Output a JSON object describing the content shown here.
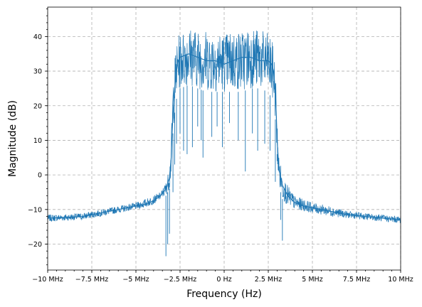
{
  "chart_data": {
    "type": "line",
    "title": "",
    "xlabel": "Frequency (Hz)",
    "ylabel": "Magnitude (dB)",
    "xlim": [
      -10,
      10
    ],
    "ylim": [
      -27.5,
      48.5
    ],
    "x_unit": "MHz",
    "grid": true,
    "legend": "none",
    "color": "#1f77b4",
    "xticks": [
      {
        "value": -10,
        "label": "−10 MHz"
      },
      {
        "value": -7.5,
        "label": "−7.5 MHz"
      },
      {
        "value": -5,
        "label": "−5 MHz"
      },
      {
        "value": -2.5,
        "label": "−2.5 MHz"
      },
      {
        "value": 0,
        "label": "0 Hz"
      },
      {
        "value": 2.5,
        "label": "2.5 MHz"
      },
      {
        "value": 5,
        "label": "5 MHz"
      },
      {
        "value": 7.5,
        "label": "7.5 MHz"
      },
      {
        "value": 10,
        "label": "10 MHz"
      }
    ],
    "yticks": [
      {
        "value": -20,
        "label": "−20"
      },
      {
        "value": -10,
        "label": "−10"
      },
      {
        "value": 0,
        "label": "0"
      },
      {
        "value": 10,
        "label": "10"
      },
      {
        "value": 20,
        "label": "20"
      },
      {
        "value": 30,
        "label": "30"
      },
      {
        "value": 40,
        "label": "40"
      }
    ],
    "series": [
      {
        "x": [
          -10,
          -9,
          -8,
          -7,
          -6,
          -5,
          -4.5,
          -4,
          -3.6,
          -3.3,
          -3.1,
          -3.0,
          -2.95,
          -2.9,
          -2.8,
          -2.7,
          -2.6,
          -2.5,
          -2.0,
          -1.5,
          -1.0,
          -0.5,
          0,
          0.5,
          1.0,
          1.5,
          2.0,
          2.5,
          2.7,
          2.8,
          2.9,
          2.95,
          3.0,
          3.1,
          3.3,
          3.6,
          4,
          4.5,
          5,
          6,
          7,
          8,
          9,
          10
        ],
        "y": [
          -12.5,
          -12.3,
          -12,
          -11,
          -10,
          -9,
          -8.5,
          -7.5,
          -6,
          -4,
          -1,
          5,
          12,
          18,
          25,
          30,
          33,
          34,
          35,
          34,
          33,
          33,
          32,
          33,
          34,
          34,
          33,
          33,
          32,
          30,
          24,
          18,
          10,
          2,
          -3,
          -6,
          -8,
          -9,
          -9.5,
          -10.5,
          -11.5,
          -12,
          -12.5,
          -13
        ],
        "band": [
          [
            -10,
            -13.5,
            -11.5
          ],
          [
            -9,
            -13.3,
            -11.3
          ],
          [
            -8,
            -13,
            -11
          ],
          [
            -7,
            -12,
            -10
          ],
          [
            -6,
            -11,
            -9
          ],
          [
            -5,
            -10,
            -8
          ],
          [
            -4.5,
            -9.5,
            -7
          ],
          [
            -4,
            -8.5,
            -6
          ],
          [
            -3.6,
            -7,
            -5
          ],
          [
            -3.3,
            -6,
            -2
          ],
          [
            -3.1,
            -4,
            2
          ],
          [
            -3.0,
            0,
            10
          ],
          [
            -2.95,
            6,
            20
          ],
          [
            -2.9,
            12,
            28
          ],
          [
            -2.8,
            18,
            34
          ],
          [
            -2.7,
            22,
            38
          ],
          [
            -2.6,
            24,
            40
          ],
          [
            -2.5,
            25,
            41
          ],
          [
            -2.0,
            26,
            43
          ],
          [
            -1.5,
            25,
            42
          ],
          [
            -1.0,
            24,
            42
          ],
          [
            -0.5,
            24,
            42
          ],
          [
            0,
            24,
            41
          ],
          [
            0.5,
            24,
            42
          ],
          [
            1.0,
            24,
            42
          ],
          [
            1.5,
            25,
            43
          ],
          [
            2.0,
            25,
            42
          ],
          [
            2.5,
            24,
            41
          ],
          [
            2.7,
            22,
            39
          ],
          [
            2.8,
            20,
            37
          ],
          [
            2.9,
            16,
            32
          ],
          [
            2.95,
            10,
            25
          ],
          [
            3.0,
            4,
            16
          ],
          [
            3.1,
            -3,
            6
          ],
          [
            3.3,
            -7,
            0
          ],
          [
            3.6,
            -9,
            -3
          ],
          [
            4,
            -10,
            -6
          ],
          [
            4.5,
            -10.5,
            -7
          ],
          [
            5,
            -11,
            -8
          ],
          [
            6,
            -12,
            -9
          ],
          [
            7,
            -12.5,
            -10.5
          ],
          [
            8,
            -13,
            -11
          ],
          [
            9,
            -13.5,
            -11.5
          ],
          [
            10,
            -14,
            -12
          ]
        ],
        "spikes": [
          [
            -3.3,
            -23.5
          ],
          [
            -3.2,
            -20
          ],
          [
            -3.1,
            -17
          ],
          [
            -2.9,
            -5
          ],
          [
            -2.8,
            3
          ],
          [
            -2.7,
            9
          ],
          [
            -2.5,
            12
          ],
          [
            -2.3,
            7
          ],
          [
            -2.1,
            6
          ],
          [
            -1.8,
            8
          ],
          [
            -1.5,
            14
          ],
          [
            -1.3,
            10
          ],
          [
            -1.2,
            5
          ],
          [
            -0.7,
            11
          ],
          [
            -0.4,
            14
          ],
          [
            -0.1,
            8
          ],
          [
            0.3,
            15
          ],
          [
            0.8,
            10
          ],
          [
            1.2,
            1
          ],
          [
            1.6,
            12
          ],
          [
            1.9,
            7
          ],
          [
            2.3,
            9
          ],
          [
            2.6,
            7
          ],
          [
            2.9,
            -2
          ],
          [
            3.0,
            6
          ],
          [
            3.2,
            -13
          ],
          [
            3.3,
            -19
          ]
        ]
      }
    ]
  }
}
